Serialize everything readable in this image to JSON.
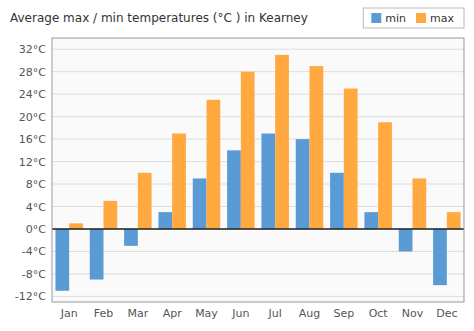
{
  "chart_data": {
    "type": "bar",
    "title": "Average max / min temperatures (°C ) in Kearney",
    "categories": [
      "Jan",
      "Feb",
      "Mar",
      "Apr",
      "May",
      "Jun",
      "Jul",
      "Aug",
      "Sep",
      "Oct",
      "Nov",
      "Dec"
    ],
    "series": [
      {
        "name": "min",
        "color": "#5B9BD5",
        "values": [
          -11,
          -9,
          -3,
          3,
          9,
          14,
          17,
          16,
          10,
          3,
          -4,
          -10
        ]
      },
      {
        "name": "max",
        "color": "#FFA940",
        "values": [
          1,
          5,
          10,
          17,
          23,
          28,
          31,
          29,
          25,
          19,
          9,
          3
        ]
      }
    ],
    "ylim": [
      -13,
      34
    ],
    "yticks": [
      {
        "value": -12,
        "label": "-12°C"
      },
      {
        "value": -8,
        "label": "-8°C"
      },
      {
        "value": -4,
        "label": "-4°C"
      },
      {
        "value": 0,
        "label": "0°C"
      },
      {
        "value": 4,
        "label": "4°C"
      },
      {
        "value": 8,
        "label": "8°C"
      },
      {
        "value": 12,
        "label": "12°C"
      },
      {
        "value": 16,
        "label": "16°C"
      },
      {
        "value": 20,
        "label": "20°C"
      },
      {
        "value": 24,
        "label": "24°C"
      },
      {
        "value": 28,
        "label": "28°C"
      },
      {
        "value": 32,
        "label": "32°C"
      }
    ],
    "grid": true,
    "legend": "upper right"
  }
}
